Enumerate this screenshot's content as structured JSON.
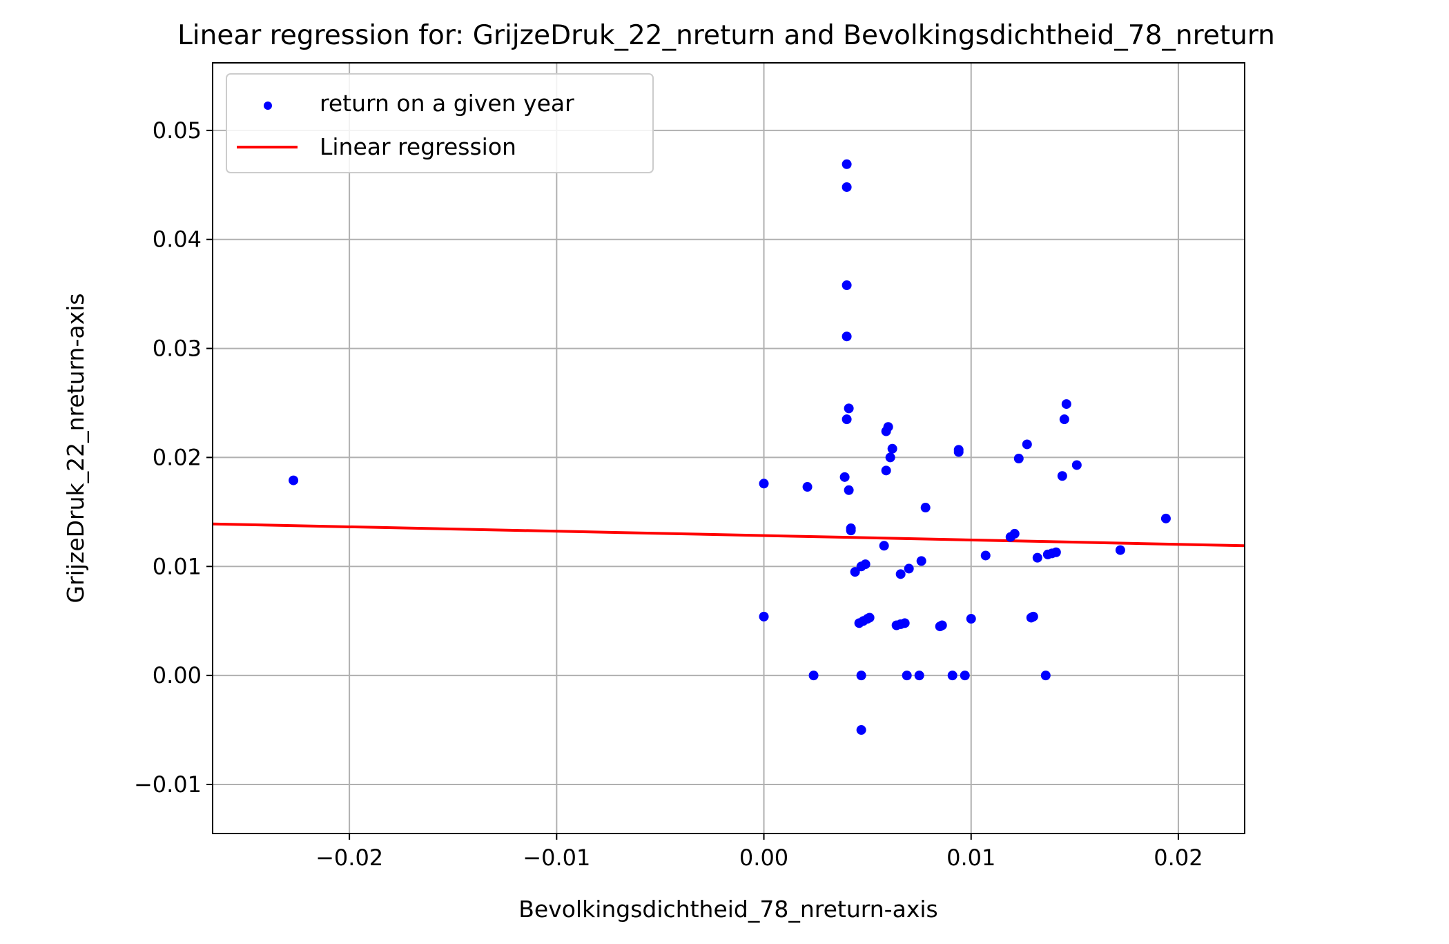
{
  "chart_data": {
    "type": "scatter",
    "title": "Linear regression for: GrijzeDruk_22_nreturn and Bevolkingsdichtheid_78_nreturn",
    "xlabel": "Bevolkingsdichtheid_78_nreturn-axis",
    "ylabel": "GrijzeDruk_22_nreturn-axis",
    "xlim": [
      -0.0266,
      0.0232
    ],
    "ylim": [
      -0.0145,
      0.0562
    ],
    "grid": true,
    "legend_position": "top-left",
    "x_ticks": [
      -0.02,
      -0.01,
      0.0,
      0.01,
      0.02
    ],
    "x_tick_labels": [
      "−0.02",
      "−0.01",
      "0.00",
      "0.01",
      "0.02"
    ],
    "y_ticks": [
      -0.01,
      0.0,
      0.01,
      0.02,
      0.03,
      0.04,
      0.05
    ],
    "y_tick_labels": [
      "−0.01",
      "0.00",
      "0.01",
      "0.02",
      "0.03",
      "0.04",
      "0.05"
    ],
    "colors": {
      "points": "#0000ff",
      "line": "#ff0000",
      "grid": "#b0b0b0"
    },
    "series": [
      {
        "name": "return on a given year",
        "kind": "scatter",
        "points": [
          [
            -0.0227,
            0.0179
          ],
          [
            0.0,
            0.0176
          ],
          [
            0.0,
            0.0054
          ],
          [
            0.0021,
            0.0173
          ],
          [
            0.0024,
            0.0
          ],
          [
            0.0039,
            0.0182
          ],
          [
            0.004,
            0.0469
          ],
          [
            0.004,
            0.0448
          ],
          [
            0.004,
            0.0358
          ],
          [
            0.004,
            0.0311
          ],
          [
            0.004,
            0.0235
          ],
          [
            0.0041,
            0.0245
          ],
          [
            0.0041,
            0.017
          ],
          [
            0.0042,
            0.0135
          ],
          [
            0.0042,
            0.0133
          ],
          [
            0.0044,
            0.0095
          ],
          [
            0.0046,
            0.0048
          ],
          [
            0.0047,
            0.01
          ],
          [
            0.0047,
            0.0
          ],
          [
            0.0047,
            -0.005
          ],
          [
            0.0048,
            0.005
          ],
          [
            0.0049,
            0.0102
          ],
          [
            0.005,
            0.0052
          ],
          [
            0.0051,
            0.0053
          ],
          [
            0.0058,
            0.0119
          ],
          [
            0.0059,
            0.0188
          ],
          [
            0.0059,
            0.0224
          ],
          [
            0.006,
            0.0228
          ],
          [
            0.0061,
            0.02
          ],
          [
            0.0062,
            0.0208
          ],
          [
            0.0064,
            0.0046
          ],
          [
            0.0066,
            0.0093
          ],
          [
            0.0066,
            0.0047
          ],
          [
            0.0068,
            0.0048
          ],
          [
            0.0069,
            0.0
          ],
          [
            0.007,
            0.0098
          ],
          [
            0.0075,
            0.0
          ],
          [
            0.0076,
            0.0105
          ],
          [
            0.0078,
            0.0154
          ],
          [
            0.0085,
            0.0045
          ],
          [
            0.0086,
            0.0046
          ],
          [
            0.0091,
            0.0
          ],
          [
            0.0094,
            0.0205
          ],
          [
            0.0094,
            0.0207
          ],
          [
            0.0097,
            0.0
          ],
          [
            0.01,
            0.0052
          ],
          [
            0.0107,
            0.011
          ],
          [
            0.0119,
            0.0127
          ],
          [
            0.0121,
            0.013
          ],
          [
            0.0123,
            0.0199
          ],
          [
            0.0127,
            0.0212
          ],
          [
            0.0129,
            0.0053
          ],
          [
            0.013,
            0.0054
          ],
          [
            0.0132,
            0.0108
          ],
          [
            0.0136,
            0.0
          ],
          [
            0.0137,
            0.0111
          ],
          [
            0.0139,
            0.0112
          ],
          [
            0.0141,
            0.0113
          ],
          [
            0.0144,
            0.0183
          ],
          [
            0.0145,
            0.0235
          ],
          [
            0.0146,
            0.0249
          ],
          [
            0.0151,
            0.0193
          ],
          [
            0.0172,
            0.0115
          ],
          [
            0.0194,
            0.0144
          ]
        ]
      },
      {
        "name": "Linear regression",
        "kind": "line",
        "points": [
          [
            -0.0266,
            0.0139
          ],
          [
            0.0232,
            0.0119
          ]
        ]
      }
    ]
  }
}
